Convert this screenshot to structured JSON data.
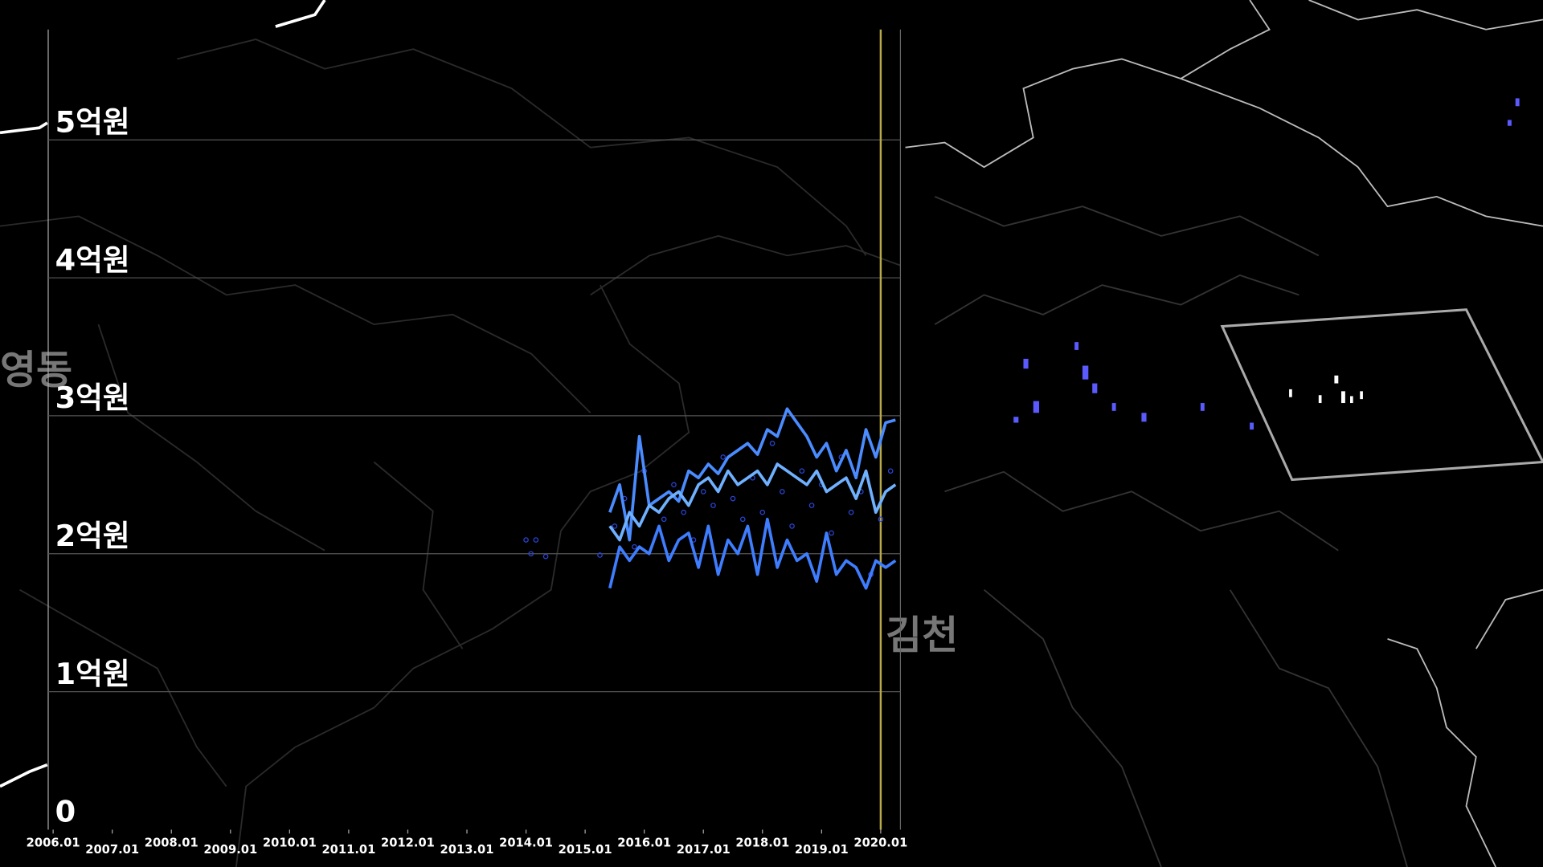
{
  "chart_data": {
    "type": "line",
    "x": [
      "2015.06",
      "2015.08",
      "2015.10",
      "2015.12",
      "2016.02",
      "2016.04",
      "2016.06",
      "2016.08",
      "2016.10",
      "2016.12",
      "2017.02",
      "2017.04",
      "2017.06",
      "2017.08",
      "2017.10",
      "2017.12",
      "2018.02",
      "2018.04",
      "2018.06",
      "2018.08",
      "2018.10",
      "2018.12",
      "2019.02",
      "2019.04",
      "2019.06",
      "2019.08",
      "2019.10",
      "2019.12",
      "2020.02",
      "2020.04"
    ],
    "series": [
      {
        "color": "#4a8cff",
        "values": [
          2.3,
          2.5,
          2.1,
          2.85,
          2.35,
          2.4,
          2.45,
          2.38,
          2.6,
          2.55,
          2.65,
          2.58,
          2.7,
          2.75,
          2.8,
          2.72,
          2.9,
          2.85,
          3.05,
          2.95,
          2.85,
          2.7,
          2.8,
          2.6,
          2.75,
          2.55,
          2.9,
          2.7,
          2.95,
          2.97
        ]
      },
      {
        "color": "#6fb0ff",
        "values": [
          2.2,
          2.1,
          2.3,
          2.2,
          2.35,
          2.3,
          2.4,
          2.45,
          2.35,
          2.5,
          2.55,
          2.45,
          2.6,
          2.5,
          2.55,
          2.6,
          2.5,
          2.65,
          2.6,
          2.55,
          2.5,
          2.6,
          2.45,
          2.5,
          2.55,
          2.4,
          2.6,
          2.3,
          2.45,
          2.5
        ]
      },
      {
        "color": "#3f7dff",
        "values": [
          1.75,
          2.05,
          1.95,
          2.05,
          2.0,
          2.2,
          1.95,
          2.1,
          2.15,
          1.9,
          2.2,
          1.85,
          2.1,
          2.0,
          2.2,
          1.85,
          2.25,
          1.9,
          2.1,
          1.95,
          2.0,
          1.8,
          2.15,
          1.85,
          1.95,
          1.9,
          1.75,
          1.95,
          1.9,
          1.95
        ]
      }
    ],
    "points": {
      "color": "#2a45d8",
      "x": [
        "2014.01",
        "2014.02",
        "2014.03",
        "2014.05",
        "2015.04",
        "2015.07",
        "2015.09",
        "2015.11",
        "2016.01",
        "2016.05",
        "2016.07",
        "2016.09",
        "2016.11",
        "2017.01",
        "2017.03",
        "2017.05",
        "2017.07",
        "2017.09",
        "2017.11",
        "2018.01",
        "2018.03",
        "2018.05",
        "2018.07",
        "2018.09",
        "2018.11",
        "2019.01",
        "2019.03",
        "2019.05",
        "2019.07",
        "2019.09",
        "2019.11",
        "2020.01",
        "2020.03"
      ],
      "values": [
        2.1,
        2.0,
        2.1,
        1.98,
        1.99,
        2.2,
        2.4,
        2.05,
        2.6,
        2.25,
        2.5,
        2.3,
        2.1,
        2.45,
        2.35,
        2.7,
        2.4,
        2.25,
        2.55,
        2.3,
        2.8,
        2.45,
        2.2,
        2.6,
        2.35,
        2.5,
        2.15,
        2.7,
        2.3,
        2.45,
        1.85,
        2.25,
        2.6
      ]
    },
    "xlim": [
      "2005.12",
      "2020.05"
    ],
    "xticks": [
      "2006.01",
      "2007.01",
      "2008.01",
      "2009.01",
      "2010.01",
      "2011.01",
      "2012.01",
      "2013.01",
      "2014.01",
      "2015.01",
      "2016.01",
      "2017.01",
      "2018.01",
      "2019.01",
      "2020.01"
    ],
    "ylim": [
      0,
      5.8
    ],
    "yticks": [
      0,
      {
        "value": 1,
        "label": "1억원"
      },
      {
        "value": 2,
        "label": "2억원"
      },
      {
        "value": 3,
        "label": "3억원"
      },
      {
        "value": 4,
        "label": "4억원"
      },
      {
        "value": 5,
        "label": "5억원"
      }
    ],
    "grid": true,
    "marker_x": "2020.01",
    "marker_color": "#b8a94a"
  },
  "map": {
    "labels": [
      "영동",
      "김천"
    ]
  }
}
